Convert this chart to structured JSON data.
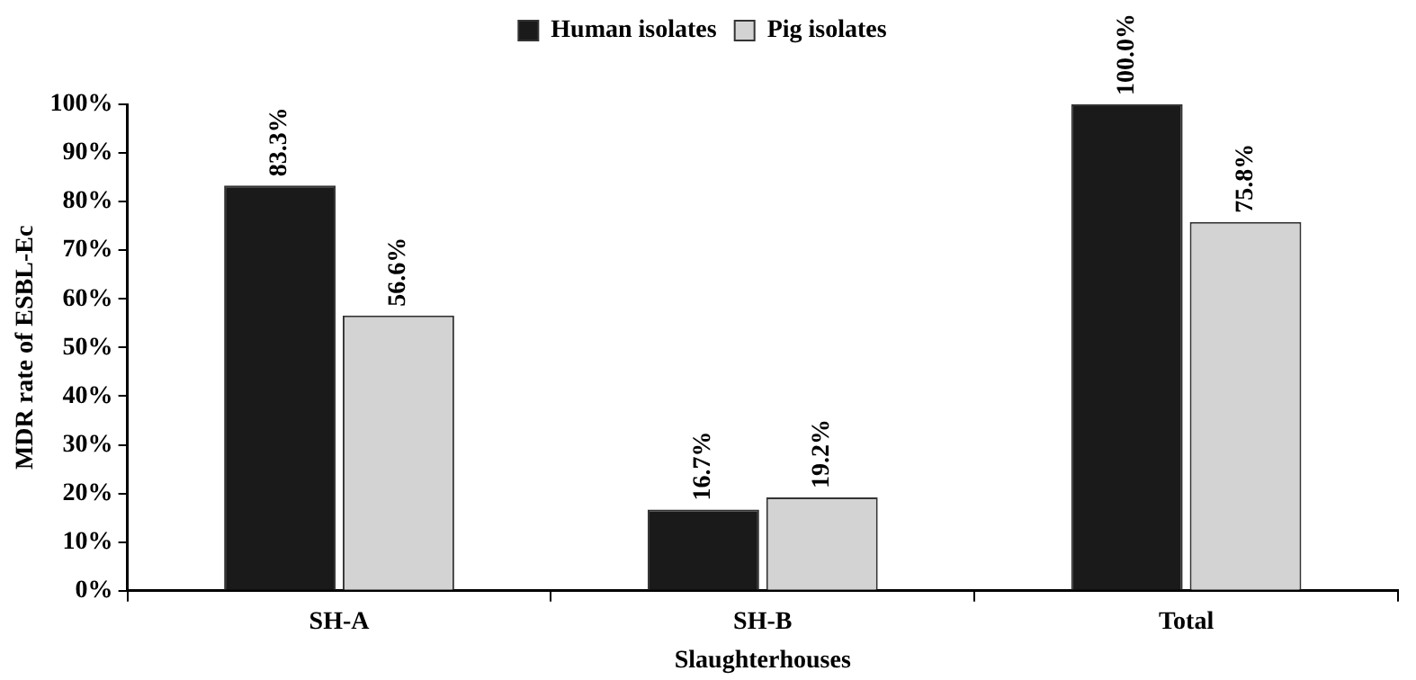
{
  "chart_data": {
    "type": "bar",
    "xlabel": "Slaughterhouses",
    "ylabel": "MDR rate of ESBL-Ec",
    "categories": [
      "SH-A",
      "SH-B",
      "Total"
    ],
    "series": [
      {
        "name": "Human isolates",
        "color": "#1a1a1a",
        "values": [
          83.3,
          16.7,
          100.0
        ],
        "value_labels": [
          "83.3%",
          "16.7%",
          "100.0%"
        ]
      },
      {
        "name": "Pig isolates",
        "color": "#d3d3d3",
        "values": [
          56.6,
          19.2,
          75.8
        ],
        "value_labels": [
          "56.6%",
          "19.2%",
          "75.8%"
        ]
      }
    ],
    "ylim": [
      0,
      100
    ],
    "yticks": [
      {
        "value": 0,
        "label": "0%"
      },
      {
        "value": 10,
        "label": "10%"
      },
      {
        "value": 20,
        "label": "20%"
      },
      {
        "value": 30,
        "label": "30%"
      },
      {
        "value": 40,
        "label": "40%"
      },
      {
        "value": 50,
        "label": "50%"
      },
      {
        "value": 60,
        "label": "60%"
      },
      {
        "value": 70,
        "label": "70%"
      },
      {
        "value": 80,
        "label": "80%"
      },
      {
        "value": 90,
        "label": "90%"
      },
      {
        "value": 100,
        "label": "100%"
      }
    ],
    "grid": false,
    "legend": "top"
  }
}
